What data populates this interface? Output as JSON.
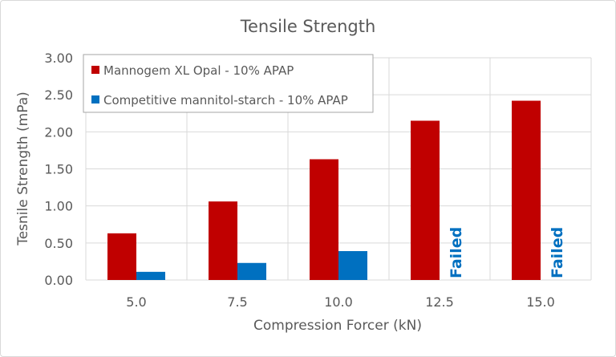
{
  "chart_data": {
    "type": "bar",
    "title": "Tensile Strength",
    "xlabel": "Compression Forcer (kN)",
    "ylabel": "Tesnile Strength (mPa)",
    "categories": [
      "5.0",
      "7.5",
      "10.0",
      "12.5",
      "15.0"
    ],
    "ylim": [
      0,
      3.0
    ],
    "yticks": [
      "0.00",
      "0.50",
      "1.00",
      "1.50",
      "2.00",
      "2.50",
      "3.00"
    ],
    "grid": true,
    "legend_position": "top-left",
    "series": [
      {
        "name": "Mannogem XL Opal - 10% APAP",
        "color": "#C00000",
        "values": [
          0.63,
          1.06,
          1.63,
          2.15,
          2.42
        ]
      },
      {
        "name": "Competitive mannitol-starch - 10% APAP",
        "color": "#0070C0",
        "values": [
          0.11,
          0.23,
          0.39,
          null,
          null
        ]
      }
    ],
    "annotations": [
      {
        "category": "12.5",
        "series": 1,
        "text": "Failed",
        "color": "#0070C0"
      },
      {
        "category": "15.0",
        "series": 1,
        "text": "Failed",
        "color": "#0070C0"
      }
    ]
  }
}
